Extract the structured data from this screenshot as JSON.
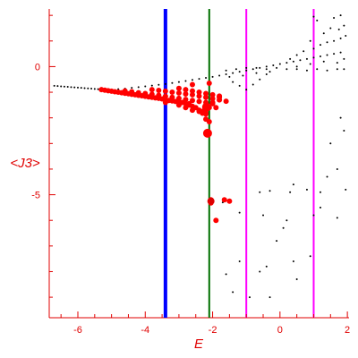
{
  "chart_data": {
    "type": "scatter",
    "xlabel": "E",
    "ylabel": "<J3>",
    "xlim": [
      -6.85,
      2.05
    ],
    "ylim": [
      -9.8,
      2.25
    ],
    "xticks": [
      -6,
      -4,
      -2,
      0,
      2
    ],
    "yticks": [
      0,
      -5
    ],
    "x_minor_step": 0.5,
    "y_minor_step": 1,
    "grid": false,
    "axis_color": "#e00000",
    "series": [
      {
        "color": "#000000",
        "points": [
          [
            -6.7,
            -0.75
          ],
          [
            -6.6,
            -0.76
          ],
          [
            -6.5,
            -0.77
          ],
          [
            -6.4,
            -0.78
          ],
          [
            -6.3,
            -0.79
          ],
          [
            -6.2,
            -0.8
          ],
          [
            -6.1,
            -0.81
          ],
          [
            -6.0,
            -0.82
          ],
          [
            -5.9,
            -0.83
          ],
          [
            -5.8,
            -0.84
          ],
          [
            -5.7,
            -0.85
          ],
          [
            -5.6,
            -0.86
          ],
          [
            -5.5,
            -0.87
          ],
          [
            -5.4,
            -0.88
          ],
          [
            -5.3,
            -0.88
          ],
          [
            -5.2,
            -0.89
          ],
          [
            -5.1,
            -0.89
          ],
          [
            -5.0,
            -0.9
          ],
          [
            -4.8,
            -0.88
          ],
          [
            -4.6,
            -0.86
          ],
          [
            -4.4,
            -0.83
          ],
          [
            -4.2,
            -0.8
          ],
          [
            -4.0,
            -0.77
          ],
          [
            -3.8,
            -0.74
          ],
          [
            -3.6,
            -0.71
          ],
          [
            -3.4,
            -0.68
          ],
          [
            -3.2,
            -0.64
          ],
          [
            -3.0,
            -0.6
          ],
          [
            -2.8,
            -0.56
          ],
          [
            -2.6,
            -0.52
          ],
          [
            -2.4,
            -0.48
          ],
          [
            -2.2,
            -0.44
          ],
          [
            -2.0,
            -0.4
          ],
          [
            -1.8,
            -0.35
          ],
          [
            -1.6,
            -0.3
          ],
          [
            -1.4,
            -0.25
          ],
          [
            -1.2,
            -0.2
          ],
          [
            -1.0,
            -0.15
          ],
          [
            -0.8,
            -0.1
          ],
          [
            -0.6,
            -0.05
          ],
          [
            -0.4,
            0.0
          ],
          [
            -0.2,
            0.05
          ],
          [
            0.0,
            0.1
          ],
          [
            0.2,
            0.15
          ],
          [
            0.4,
            0.2
          ],
          [
            0.6,
            0.25
          ],
          [
            0.8,
            0.3
          ],
          [
            1.0,
            0.35
          ],
          [
            1.2,
            0.4
          ],
          [
            1.4,
            0.45
          ],
          [
            1.6,
            0.5
          ],
          [
            1.8,
            0.55
          ],
          [
            -1.6,
            -0.15
          ],
          [
            -1.3,
            -0.1
          ],
          [
            -1.0,
            -0.05
          ],
          [
            -0.7,
            -0.05
          ],
          [
            -0.4,
            -0.1
          ],
          [
            -0.1,
            -0.05
          ],
          [
            0.2,
            -0.1
          ],
          [
            0.5,
            -0.1
          ],
          [
            0.8,
            -0.15
          ],
          [
            1.1,
            -0.1
          ],
          [
            1.4,
            -0.15
          ],
          [
            1.7,
            -0.1
          ],
          [
            1.9,
            -0.1
          ],
          [
            -1.4,
            -0.6
          ],
          [
            -1.2,
            -0.75
          ],
          [
            -1.0,
            -0.9
          ],
          [
            -0.8,
            -0.7
          ],
          [
            -0.6,
            -0.5
          ],
          [
            -0.4,
            -0.3
          ],
          [
            -1.5,
            -0.4
          ],
          [
            -1.1,
            -0.35
          ],
          [
            -0.7,
            -0.25
          ],
          [
            -0.3,
            -0.2
          ],
          [
            0.3,
            0.3
          ],
          [
            0.5,
            0.45
          ],
          [
            0.7,
            0.6
          ],
          [
            1.0,
            0.7
          ],
          [
            1.2,
            0.85
          ],
          [
            1.4,
            0.95
          ],
          [
            1.6,
            1.0
          ],
          [
            1.8,
            1.1
          ],
          [
            1.95,
            1.2
          ],
          [
            0.9,
            1.0
          ],
          [
            1.3,
            1.3
          ],
          [
            1.5,
            1.5
          ],
          [
            1.75,
            1.45
          ],
          [
            1.9,
            1.6
          ],
          [
            1.1,
            1.8
          ],
          [
            1.6,
            1.9
          ],
          [
            1.0,
            1.95
          ],
          [
            1.8,
            2.0
          ],
          [
            0.5,
            0.0
          ],
          [
            0.9,
            0.1
          ],
          [
            1.3,
            0.2
          ],
          [
            1.7,
            0.15
          ],
          [
            1.9,
            0.3
          ],
          [
            1.8,
            -2.0
          ],
          [
            1.9,
            -2.5
          ],
          [
            1.5,
            -3.0
          ],
          [
            1.7,
            -4.0
          ],
          [
            1.4,
            -4.3
          ],
          [
            1.95,
            -4.8
          ],
          [
            1.2,
            -5.5
          ],
          [
            1.0,
            -5.8
          ],
          [
            1.7,
            -5.9
          ],
          [
            0.4,
            -4.6
          ],
          [
            0.8,
            -4.8
          ],
          [
            1.2,
            -4.9
          ],
          [
            -0.6,
            -4.9
          ],
          [
            -0.3,
            -4.85
          ],
          [
            0.3,
            -4.9
          ],
          [
            0.1,
            -6.3
          ],
          [
            -0.1,
            -6.8
          ],
          [
            0.4,
            -7.6
          ],
          [
            0.9,
            -7.4
          ],
          [
            -0.4,
            -7.8
          ],
          [
            -1.6,
            -8.1
          ],
          [
            -1.2,
            -7.6
          ],
          [
            -0.6,
            -8.0
          ],
          [
            0.5,
            -8.3
          ],
          [
            -0.9,
            -9.0
          ],
          [
            -0.3,
            -9.0
          ],
          [
            -1.4,
            -8.8
          ],
          [
            -2.0,
            -5.3
          ],
          [
            -1.7,
            -5.3
          ],
          [
            -1.2,
            -5.7
          ],
          [
            -0.5,
            -5.8
          ],
          [
            0.2,
            -6.0
          ]
        ]
      },
      {
        "color": "#ff0000",
        "points": [
          [
            -5.3,
            -0.9
          ],
          [
            -5.2,
            -0.92
          ],
          [
            -5.1,
            -0.94
          ],
          [
            -5.0,
            -0.96
          ],
          [
            -4.9,
            -0.98
          ],
          [
            -4.8,
            -1.0
          ],
          [
            -4.7,
            -1.02
          ],
          [
            -4.6,
            -1.04
          ],
          [
            -4.5,
            -1.06
          ],
          [
            -4.4,
            -1.08
          ],
          [
            -4.3,
            -1.1
          ],
          [
            -4.2,
            -1.12
          ],
          [
            -4.1,
            -1.14
          ],
          [
            -4.0,
            -1.16
          ],
          [
            -3.9,
            -1.18
          ],
          [
            -3.8,
            -1.2
          ],
          [
            -3.7,
            -1.22
          ],
          [
            -3.6,
            -1.24
          ],
          [
            -3.5,
            -1.26
          ],
          [
            -3.4,
            -1.3
          ],
          [
            -3.3,
            -1.32
          ],
          [
            -3.2,
            -1.34
          ],
          [
            -3.1,
            -1.36
          ],
          [
            -3.0,
            -1.38
          ],
          [
            -2.9,
            -1.4
          ],
          [
            -2.8,
            -1.44
          ],
          [
            -2.7,
            -1.5
          ],
          [
            -2.6,
            -1.55
          ],
          [
            -2.5,
            -1.6
          ],
          [
            -2.4,
            -1.7
          ],
          [
            -2.3,
            -1.75
          ],
          [
            -2.2,
            -1.8
          ],
          [
            -4.6,
            -0.95
          ],
          [
            -4.4,
            -0.98
          ],
          [
            -4.2,
            -1.02
          ],
          [
            -4.0,
            -1.05
          ],
          [
            -3.8,
            -1.08
          ],
          [
            -3.6,
            -1.12
          ],
          [
            -3.4,
            -1.16
          ],
          [
            -3.2,
            -1.2
          ],
          [
            -3.0,
            -1.24
          ],
          [
            -2.8,
            -1.28
          ],
          [
            -2.6,
            -1.32
          ],
          [
            -2.4,
            -1.36
          ],
          [
            -2.2,
            -1.4
          ],
          [
            -2.0,
            -1.45
          ],
          [
            -3.8,
            -0.9
          ],
          [
            -3.6,
            -0.93
          ],
          [
            -3.4,
            -0.96
          ],
          [
            -3.2,
            -1.0
          ],
          [
            -3.0,
            -1.03
          ],
          [
            -2.8,
            -1.07
          ],
          [
            -2.6,
            -1.1
          ],
          [
            -2.4,
            -1.15
          ],
          [
            -2.2,
            -1.2
          ],
          [
            -2.0,
            -1.25
          ],
          [
            -1.8,
            -1.3
          ],
          [
            -1.6,
            -1.35
          ],
          [
            -3.0,
            -0.85
          ],
          [
            -2.8,
            -0.9
          ],
          [
            -2.6,
            -0.95
          ],
          [
            -2.4,
            -1.0
          ],
          [
            -2.2,
            -1.05
          ],
          [
            -2.0,
            -1.1
          ],
          [
            -1.8,
            -1.15
          ],
          [
            -2.8,
            -1.6
          ],
          [
            -2.6,
            -1.7
          ],
          [
            -2.4,
            -1.75
          ],
          [
            -2.3,
            -1.82
          ],
          [
            -2.2,
            -1.85
          ],
          [
            -2.1,
            -1.6
          ],
          [
            -2.0,
            -1.4
          ],
          [
            -1.9,
            -1.6
          ],
          [
            -1.8,
            -1.2
          ],
          [
            -2.6,
            -0.7
          ],
          [
            -2.1,
            -0.65
          ],
          [
            -2.2,
            -2.05
          ],
          [
            -2.1,
            -2.15
          ],
          [
            -2.15,
            -2.58
          ],
          [
            -2.05,
            -5.2
          ],
          [
            -2.05,
            -5.32
          ],
          [
            -1.9,
            -6.0
          ],
          [
            -1.65,
            -5.2
          ],
          [
            -1.5,
            -5.25
          ],
          [
            -3.4,
            -1.4
          ],
          [
            -3.0,
            -1.5
          ],
          [
            -2.7,
            -1.45
          ]
        ]
      },
      {
        "color": "#ff0000",
        "points": [
          [
            -2.18,
            -1.58
          ],
          [
            -2.15,
            -2.6
          ]
        ]
      },
      {
        "color": "#dd0000",
        "points": [
          [
            -2.05,
            -5.25
          ]
        ]
      }
    ],
    "vertical_lines": [
      {
        "x": -3.4,
        "color": "#0000ff"
      },
      {
        "x": -2.1,
        "color": "#007000"
      },
      {
        "x": -1.0,
        "color": "#ff00ff"
      },
      {
        "x": 1.0,
        "color": "#ff00ff"
      }
    ]
  }
}
